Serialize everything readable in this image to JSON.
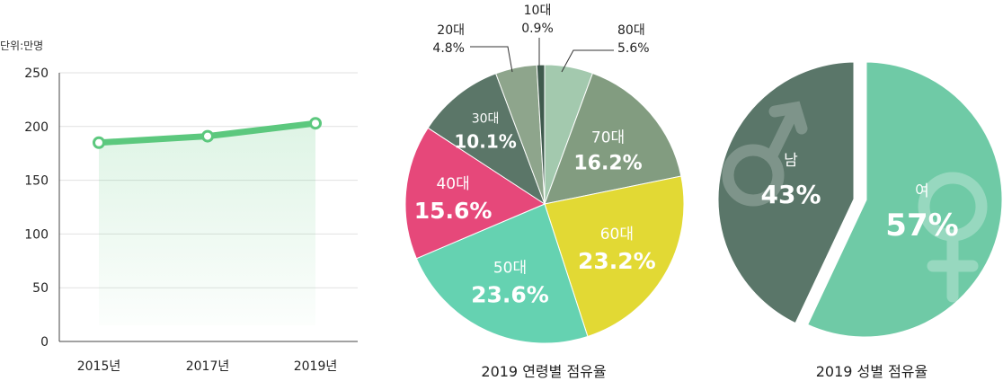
{
  "chart_data": [
    {
      "type": "area",
      "ylabel": "단위:만명",
      "ylim": [
        0,
        250
      ],
      "yticks": [
        0,
        50,
        100,
        150,
        200,
        250
      ],
      "categories": [
        "2015년",
        "2017년",
        "2019년"
      ],
      "values": [
        185,
        191,
        203
      ],
      "grid": true,
      "color": "#5cc87e"
    },
    {
      "type": "pie",
      "title": "2019 연령별 점유율",
      "slices": [
        {
          "label": "80대",
          "value": 5.6,
          "text": "5.6%",
          "color": "#a3c9ae"
        },
        {
          "label": "70대",
          "value": 16.2,
          "text": "16.2%",
          "color": "#829c80"
        },
        {
          "label": "60대",
          "value": 23.2,
          "text": "23.2%",
          "color": "#e2d934"
        },
        {
          "label": "50대",
          "value": 23.6,
          "text": "23.6%",
          "color": "#65d2b1"
        },
        {
          "label": "40대",
          "value": 15.6,
          "text": "15.6%",
          "color": "#e6487a"
        },
        {
          "label": "30대",
          "value": 10.1,
          "text": "10.1%",
          "color": "#5b7668"
        },
        {
          "label": "20대",
          "value": 4.8,
          "text": "4.8%",
          "color": "#8ea58c"
        },
        {
          "label": "10대",
          "value": 0.9,
          "text": "0.9%",
          "color": "#3f5a4d"
        }
      ]
    },
    {
      "type": "pie",
      "title": "2019 성별 점유율",
      "slices": [
        {
          "label": "여",
          "value": 57,
          "text": "57%",
          "color": "#6fcaa6",
          "icon": "female-symbol-icon"
        },
        {
          "label": "남",
          "value": 43,
          "text": "43%",
          "color": "#5a7669",
          "icon": "male-symbol-icon"
        }
      ]
    }
  ]
}
